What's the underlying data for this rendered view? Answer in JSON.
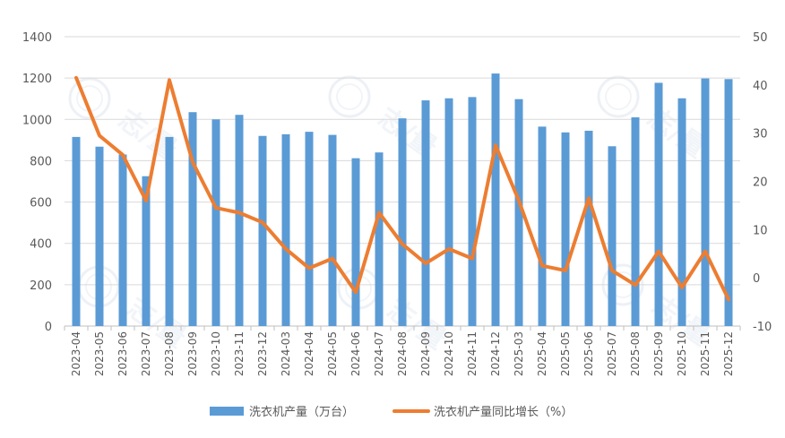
{
  "chart_data": {
    "type": "bar",
    "categories": [
      "2023-04",
      "2023-05",
      "2023-06",
      "2023-07",
      "2023-08",
      "2023-09",
      "2023-10",
      "2023-11",
      "2023-12",
      "2024-03",
      "2024-04",
      "2024-05",
      "2024-06",
      "2024-07",
      "2024-08",
      "2024-09",
      "2024-10",
      "2024-11",
      "2024-12",
      "2025-03",
      "2025-04",
      "2025-05",
      "2025-06",
      "2025-07",
      "2025-08",
      "2025-09",
      "2025-10",
      "2025-11",
      "2025-12"
    ],
    "series": [
      {
        "name": "洗衣机产量（万台）",
        "type": "bar",
        "axis": "left",
        "color": "#5b9bd5",
        "values": [
          915,
          868,
          830,
          725,
          915,
          1035,
          1000,
          1022,
          920,
          928,
          940,
          925,
          812,
          840,
          1005,
          1092,
          1102,
          1108,
          1222,
          1098,
          965,
          937,
          945,
          870,
          1010,
          1177,
          1102,
          1198,
          1195
        ]
      },
      {
        "name": "洗衣机产量同比增长（%）",
        "type": "line",
        "axis": "right",
        "color": "#ed7d31",
        "values": [
          41.5,
          29.5,
          25.5,
          16,
          41,
          24,
          14.5,
          13.5,
          11.5,
          6,
          2,
          4,
          -3,
          13.5,
          7,
          3,
          6,
          4,
          27.5,
          16,
          2.5,
          1.5,
          16.5,
          1.5,
          -1.5,
          5.5,
          -2,
          5.5,
          -4.5
        ]
      }
    ],
    "y_left": {
      "min": 0,
      "max": 1400,
      "ticks": [
        "0",
        "200",
        "400",
        "600",
        "800",
        "1000",
        "1200",
        "1400"
      ]
    },
    "y_right": {
      "min": -10,
      "max": 50,
      "ticks": [
        "-10",
        "0",
        "10",
        "20",
        "30",
        "40",
        "50"
      ]
    },
    "grid": true,
    "legend": "bottom-center",
    "watermark": "志/量"
  }
}
